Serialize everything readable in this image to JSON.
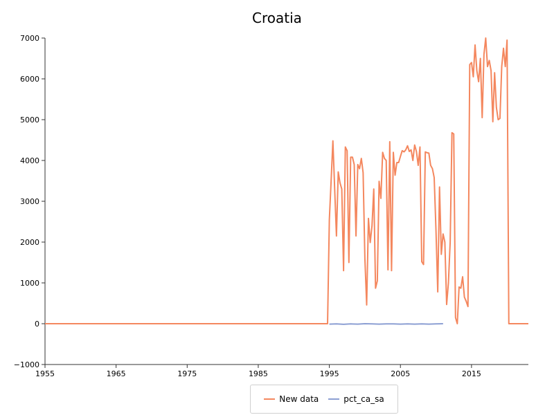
{
  "chart_data": {
    "type": "line",
    "title": "Croatia",
    "xlabel": "",
    "ylabel": "",
    "xlim": [
      1955,
      2023
    ],
    "ylim": [
      -1000,
      7000
    ],
    "x_ticks": [
      "1955",
      "1965",
      "1975",
      "1985",
      "1995",
      "2005",
      "2015"
    ],
    "y_ticks": [
      "−1000",
      "0",
      "1000",
      "2000",
      "3000",
      "4000",
      "5000",
      "6000",
      "7000"
    ],
    "grid": false,
    "legend_position": "bottom-center",
    "series": [
      {
        "name": "New data",
        "color": "#f4875e",
        "x": [
          1955,
          1994.75,
          1995,
          1995.25,
          1995.5,
          1995.75,
          1996,
          1996.25,
          1996.5,
          1996.75,
          1997,
          1997.25,
          1997.5,
          1997.75,
          1998,
          1998.25,
          1998.5,
          1998.75,
          1999,
          1999.25,
          1999.5,
          1999.75,
          2000,
          2000.25,
          2000.5,
          2000.75,
          2001,
          2001.25,
          2001.5,
          2001.75,
          2002,
          2002.25,
          2002.5,
          2002.75,
          2003,
          2003.25,
          2003.5,
          2003.75,
          2004,
          2004.25,
          2004.5,
          2004.75,
          2005,
          2005.25,
          2005.5,
          2005.75,
          2006,
          2006.25,
          2006.5,
          2006.75,
          2007,
          2007.25,
          2007.5,
          2007.75,
          2008,
          2008.25,
          2008.5,
          2008.75,
          2009,
          2009.25,
          2009.5,
          2009.75,
          2010,
          2010.25,
          2010.5,
          2010.75,
          2011,
          2011.25,
          2011.5,
          2011.75,
          2012,
          2012.25,
          2012.5,
          2012.75,
          2013,
          2013.25,
          2013.5,
          2013.75,
          2014,
          2014.25,
          2014.5,
          2014.75,
          2015,
          2015.25,
          2015.5,
          2015.75,
          2016,
          2016.25,
          2016.5,
          2016.75,
          2017,
          2017.25,
          2017.5,
          2017.75,
          2018,
          2018.25,
          2018.5,
          2018.75,
          2019,
          2019.25,
          2019.5,
          2019.75,
          2020,
          2020.25,
          2020.5,
          2023
        ],
        "y": [
          0,
          0,
          2550,
          3500,
          4480,
          3300,
          2150,
          3720,
          3450,
          3300,
          1300,
          4330,
          4240,
          1500,
          4080,
          4080,
          3900,
          2150,
          3900,
          3800,
          4050,
          3700,
          1600,
          460,
          2580,
          1990,
          2400,
          3300,
          870,
          1050,
          3490,
          3070,
          4200,
          4050,
          4000,
          1320,
          4460,
          1300,
          4200,
          3640,
          3950,
          3950,
          4100,
          4240,
          4210,
          4260,
          4360,
          4220,
          4260,
          4000,
          4380,
          4220,
          3880,
          4330,
          1520,
          1450,
          4210,
          4190,
          4180,
          3880,
          3800,
          3580,
          2300,
          780,
          3350,
          1700,
          2200,
          2000,
          470,
          1000,
          2000,
          4680,
          4650,
          150,
          0,
          900,
          870,
          1150,
          650,
          550,
          420,
          6350,
          6400,
          6050,
          6830,
          6200,
          5930,
          6500,
          5050,
          6600,
          7000,
          6300,
          6450,
          6200,
          4950,
          6150,
          5300,
          5000,
          5030,
          6300,
          6750,
          6300,
          6950,
          0,
          0,
          0
        ]
      },
      {
        "name": "pct_ca_sa",
        "color": "#8c9fd3",
        "x": [
          1995,
          1996,
          1997,
          1998,
          1999,
          2000,
          2001,
          2002,
          2003,
          2004,
          2005,
          2006,
          2007,
          2008,
          2009,
          2010,
          2011
        ],
        "y": [
          -10,
          -5,
          -15,
          -5,
          -10,
          0,
          -5,
          -10,
          -5,
          -5,
          -10,
          -5,
          -10,
          -5,
          -10,
          -5,
          0
        ]
      }
    ]
  }
}
